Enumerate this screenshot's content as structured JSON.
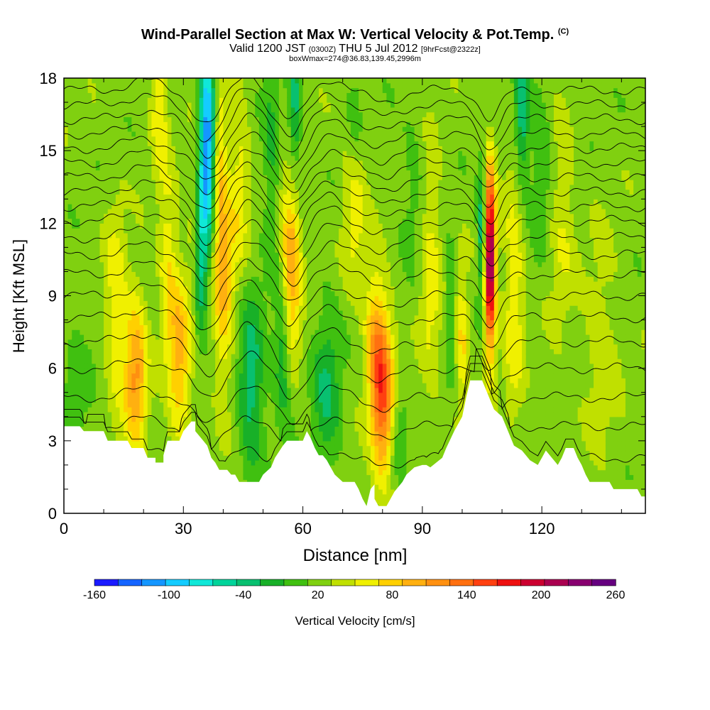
{
  "title": {
    "main": "Wind-Parallel Section at Max W: Vertical Velocity & Pot.Temp.",
    "copyright": "(C)",
    "valid_prefix": "Valid 1200 JST",
    "valid_z": "(0300Z)",
    "valid_date": "THU 5 Jul 2012",
    "forecast": "[9hrFcst@2322z]",
    "box": "boxWmax=274@36.83,139.45,2996m"
  },
  "chart_data": {
    "type": "heatmap",
    "xlabel": "Distance [nm]",
    "ylabel": "Height [Kft MSL]",
    "xlim": [
      0,
      146
    ],
    "ylim": [
      0,
      18
    ],
    "x_ticks": [
      "0",
      "30",
      "60",
      "90",
      "120"
    ],
    "y_ticks": [
      "0",
      "3",
      "6",
      "9",
      "12",
      "15",
      "18"
    ],
    "colorbar": {
      "label": "Vertical Velocity [cm/s]",
      "tick_labels": [
        "-160",
        "-100",
        "-40",
        "20",
        "80",
        "140",
        "200",
        "260"
      ],
      "levels": [
        -160,
        -140,
        -120,
        -100,
        -80,
        -60,
        -40,
        -20,
        0,
        20,
        40,
        60,
        80,
        100,
        120,
        140,
        160,
        180,
        200,
        220,
        240,
        260
      ],
      "colors": [
        "#1a1aff",
        "#1464ff",
        "#1496ff",
        "#14ccff",
        "#10e8d8",
        "#00d49a",
        "#08c070",
        "#18b028",
        "#40c010",
        "#80d010",
        "#c0e000",
        "#f0f000",
        "#ffd000",
        "#ffb010",
        "#ff9010",
        "#ff7010",
        "#ff4010",
        "#ee1010",
        "#cc0030",
        "#aa0050",
        "#880070",
        "#660080"
      ]
    },
    "terrain_kft": [
      [
        0,
        3.6
      ],
      [
        4,
        3.6
      ],
      [
        5,
        3.4
      ],
      [
        10,
        3.4
      ],
      [
        11,
        3.0
      ],
      [
        16,
        3.0
      ],
      [
        17,
        2.7
      ],
      [
        20,
        2.7
      ],
      [
        21,
        2.3
      ],
      [
        23,
        2.3
      ],
      [
        23,
        2.1
      ],
      [
        25,
        2.1
      ],
      [
        25,
        2.4
      ],
      [
        26,
        3.0
      ],
      [
        29,
        3.0
      ],
      [
        30,
        3.4
      ],
      [
        32,
        3.8
      ],
      [
        33,
        3.8
      ],
      [
        33,
        3.4
      ],
      [
        35,
        3.0
      ],
      [
        36,
        2.8
      ],
      [
        37,
        2.3
      ],
      [
        38,
        2.1
      ],
      [
        39,
        1.8
      ],
      [
        41,
        1.8
      ],
      [
        42,
        1.6
      ],
      [
        43,
        1.6
      ],
      [
        44,
        1.3
      ],
      [
        49,
        1.3
      ],
      [
        50,
        1.6
      ],
      [
        52,
        1.9
      ],
      [
        53,
        2.3
      ],
      [
        55,
        2.8
      ],
      [
        56,
        3.0
      ],
      [
        60,
        3.0
      ],
      [
        61,
        3.4
      ],
      [
        62,
        3.1
      ],
      [
        63,
        2.7
      ],
      [
        64,
        2.4
      ],
      [
        65,
        2.4
      ],
      [
        66,
        2.2
      ],
      [
        67,
        1.9
      ],
      [
        68,
        1.6
      ],
      [
        70,
        1.3
      ],
      [
        73,
        1.3
      ],
      [
        74,
        1.0
      ],
      [
        75,
        0.6
      ],
      [
        76,
        0.3
      ],
      [
        77,
        1.0
      ],
      [
        78,
        1.2
      ],
      [
        78,
        0.6
      ],
      [
        79,
        0.3
      ],
      [
        81,
        0.3
      ],
      [
        82,
        0.6
      ],
      [
        83,
        0.9
      ],
      [
        85,
        1.3
      ],
      [
        86,
        1.6
      ],
      [
        88,
        1.9
      ],
      [
        90,
        2.0
      ],
      [
        91,
        2.0
      ],
      [
        92,
        1.9
      ],
      [
        95,
        2.3
      ],
      [
        96,
        2.7
      ],
      [
        98,
        3.4
      ],
      [
        100,
        4.0
      ],
      [
        101,
        4.8
      ],
      [
        102,
        5.5
      ],
      [
        105,
        5.5
      ],
      [
        106,
        5.1
      ],
      [
        107,
        4.7
      ],
      [
        108,
        4.3
      ],
      [
        110,
        4.0
      ],
      [
        111,
        3.6
      ],
      [
        112,
        3.2
      ],
      [
        113,
        2.8
      ],
      [
        115,
        2.6
      ],
      [
        116,
        2.4
      ],
      [
        117,
        2.2
      ],
      [
        119,
        2.0
      ],
      [
        120,
        2.3
      ],
      [
        121,
        2.6
      ],
      [
        123,
        2.2
      ],
      [
        124,
        2.0
      ],
      [
        125,
        2.3
      ],
      [
        126,
        2.7
      ],
      [
        128,
        2.7
      ],
      [
        129,
        2.3
      ],
      [
        130,
        2.0
      ],
      [
        131,
        1.6
      ],
      [
        132,
        1.3
      ],
      [
        137,
        1.3
      ],
      [
        138,
        1.0
      ],
      [
        144,
        1.0
      ],
      [
        145,
        0.7
      ],
      [
        146,
        0.7
      ]
    ],
    "features": [
      {
        "x": 36,
        "y": 15.5,
        "sx": 1.4,
        "sy": 3.0,
        "w": -150
      },
      {
        "x": 34,
        "y": 10.5,
        "sx": 1.2,
        "sy": 2.2,
        "w": -85
      },
      {
        "x": 47,
        "y": 5.5,
        "sx": 2.3,
        "sy": 2.5,
        "w": -65
      },
      {
        "x": 55,
        "y": 6.8,
        "sx": 1.5,
        "sy": 2.0,
        "w": -60
      },
      {
        "x": 57,
        "y": 10.2,
        "sx": 1.7,
        "sy": 2.6,
        "w": 95
      },
      {
        "x": 40,
        "y": 9.5,
        "sx": 1.8,
        "sy": 3.0,
        "w": 70
      },
      {
        "x": 39,
        "y": 14.5,
        "sx": 1.2,
        "sy": 2.5,
        "w": 55
      },
      {
        "x": 33,
        "y": 11.5,
        "sx": 1.0,
        "sy": 2.5,
        "w": 45
      },
      {
        "x": 29,
        "y": 6.5,
        "sx": 2.0,
        "sy": 2.5,
        "w": 75
      },
      {
        "x": 18,
        "y": 5.8,
        "sx": 2.0,
        "sy": 2.2,
        "w": 95
      },
      {
        "x": 13,
        "y": 8.5,
        "sx": 1.8,
        "sy": 3.0,
        "w": 45
      },
      {
        "x": 80,
        "y": 4.8,
        "sx": 2.0,
        "sy": 2.3,
        "w": 130
      },
      {
        "x": 78,
        "y": 7.5,
        "sx": 1.8,
        "sy": 2.0,
        "w": 60
      },
      {
        "x": 107,
        "y": 10.5,
        "sx": 1.0,
        "sy": 2.6,
        "w": 230
      },
      {
        "x": 105,
        "y": 11.5,
        "sx": 0.8,
        "sy": 2.0,
        "w": -80
      },
      {
        "x": 113,
        "y": 9.0,
        "sx": 1.7,
        "sy": 3.5,
        "w": 50
      },
      {
        "x": 115,
        "y": 16.5,
        "sx": 1.2,
        "sy": 2.0,
        "w": -70
      },
      {
        "x": 92,
        "y": 10.0,
        "sx": 2.0,
        "sy": 3.5,
        "w": 40
      },
      {
        "x": 100,
        "y": 7.0,
        "sx": 1.2,
        "sy": 2.0,
        "w": 55
      },
      {
        "x": 97,
        "y": 8.5,
        "sx": 1.0,
        "sy": 2.0,
        "w": -30
      },
      {
        "x": 66,
        "y": 5.0,
        "sx": 2.5,
        "sy": 2.5,
        "w": -50
      },
      {
        "x": 73,
        "y": 13.0,
        "sx": 2.0,
        "sy": 2.5,
        "w": 45
      },
      {
        "x": 73,
        "y": 16.0,
        "sx": 1.5,
        "sy": 2.0,
        "w": -30
      },
      {
        "x": 58,
        "y": 16.5,
        "sx": 1.2,
        "sy": 2.0,
        "w": -60
      },
      {
        "x": 24,
        "y": 17.0,
        "sx": 1.5,
        "sy": 2.0,
        "w": 50
      },
      {
        "x": 26,
        "y": 10.5,
        "sx": 1.5,
        "sy": 2.5,
        "w": 45
      },
      {
        "x": 3,
        "y": 5.0,
        "sx": 2.5,
        "sy": 2.0,
        "w": -20
      },
      {
        "x": 135,
        "y": 7.0,
        "sx": 3.0,
        "sy": 3.0,
        "w": 25
      },
      {
        "x": 125,
        "y": 12.0,
        "sx": 2.5,
        "sy": 3.0,
        "w": 30
      },
      {
        "x": 120,
        "y": 14.5,
        "sx": 2.0,
        "sy": 2.5,
        "w": -30
      },
      {
        "x": 52,
        "y": 15.0,
        "sx": 1.5,
        "sy": 3.0,
        "w": -35
      },
      {
        "x": 44,
        "y": 13.5,
        "sx": 1.8,
        "sy": 3.0,
        "w": 40
      },
      {
        "x": 88,
        "y": 13.5,
        "sx": 2.0,
        "sy": 3.0,
        "w": -20
      },
      {
        "x": 84,
        "y": 3.5,
        "sx": 1.5,
        "sy": 1.5,
        "w": -30
      }
    ],
    "isentropes_kft": [
      2.3,
      3.6,
      4.8,
      6.0,
      7.1,
      8.1,
      9.0,
      9.9,
      10.7,
      11.4,
      12.1,
      12.7,
      13.3,
      13.9,
      14.5,
      15.1,
      15.7,
      16.3,
      16.9,
      17.5
    ],
    "isentrope_perturbations": [
      {
        "x": 36,
        "amp": -1.4,
        "w": 3.5
      },
      {
        "x": 57,
        "amp": -1.3,
        "w": 3.0
      },
      {
        "x": 46,
        "amp": 0.7,
        "w": 3.0
      },
      {
        "x": 107,
        "amp": -1.2,
        "w": 2.5
      },
      {
        "x": 80,
        "amp": -0.5,
        "w": 4.0
      },
      {
        "x": 20,
        "amp": 0.4,
        "w": 4.0
      },
      {
        "x": 67,
        "amp": 0.5,
        "w": 3.0
      }
    ]
  },
  "colors": {
    "background": "#ffffff",
    "plot_border": "#000000",
    "contour": "#000000",
    "terrain": "#ffffff"
  }
}
